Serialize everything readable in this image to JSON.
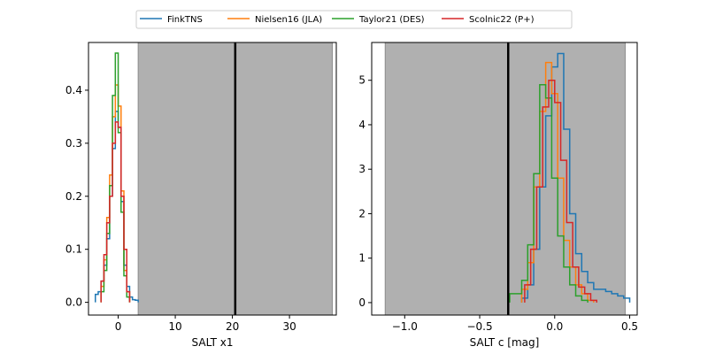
{
  "legend": {
    "placement": "top-center",
    "entries": [
      {
        "name": "FinkTNS",
        "color": "#1f77b4"
      },
      {
        "name": "Nielsen16 (JLA)",
        "color": "#ff7f0e"
      },
      {
        "name": "Taylor21 (DES)",
        "color": "#2ca02c"
      },
      {
        "name": "Scolnic22 (P+)",
        "color": "#d62728"
      }
    ]
  },
  "chart_data": [
    {
      "type": "histogram",
      "xlabel": "SALT x1",
      "ylabel": "",
      "xlim": [
        -5.2,
        38.2
      ],
      "ylim": [
        -0.024,
        0.49
      ],
      "xticks": [
        0,
        10,
        20,
        30
      ],
      "yticks": [
        0.0,
        0.1,
        0.2,
        0.3,
        0.4
      ],
      "ytick_labels": [
        "0.0",
        "0.1",
        "0.2",
        "0.3",
        "0.4"
      ],
      "shaded_region": [
        3.5,
        37.5
      ],
      "shade_color": "#b0b0b0",
      "vline": 20.5,
      "series": [
        {
          "name": "FinkTNS",
          "color": "#1f77b4",
          "edges": [
            -4.0,
            -3.5,
            -3.0,
            -2.5,
            -2.0,
            -1.5,
            -1.0,
            -0.5,
            0.0,
            0.5,
            1.0,
            1.5,
            2.0,
            2.5,
            3.0,
            3.5
          ],
          "heights": [
            0.015,
            0.02,
            0.04,
            0.07,
            0.12,
            0.2,
            0.29,
            0.36,
            0.33,
            0.19,
            0.07,
            0.03,
            0.01,
            0.005,
            0.004
          ]
        },
        {
          "name": "Nielsen16 (JLA)",
          "color": "#ff7f0e",
          "edges": [
            -3.0,
            -2.5,
            -2.0,
            -1.5,
            -1.0,
            -0.5,
            0.0,
            0.5,
            1.0,
            1.5,
            2.0
          ],
          "heights": [
            0.03,
            0.08,
            0.16,
            0.24,
            0.35,
            0.41,
            0.37,
            0.21,
            0.06,
            0.02
          ]
        },
        {
          "name": "Taylor21 (DES)",
          "color": "#2ca02c",
          "edges": [
            -3.0,
            -2.5,
            -2.0,
            -1.5,
            -1.0,
            -0.5,
            0.0,
            0.5,
            1.0,
            1.5,
            2.0
          ],
          "heights": [
            0.02,
            0.06,
            0.13,
            0.22,
            0.39,
            0.47,
            0.32,
            0.17,
            0.05,
            0.01
          ]
        },
        {
          "name": "Scolnic22 (P+)",
          "color": "#d62728",
          "edges": [
            -3.0,
            -2.5,
            -2.0,
            -1.5,
            -1.0,
            -0.5,
            0.0,
            0.5,
            1.0,
            1.5,
            2.0
          ],
          "heights": [
            0.04,
            0.09,
            0.15,
            0.2,
            0.3,
            0.34,
            0.33,
            0.2,
            0.1,
            0.02
          ]
        }
      ]
    },
    {
      "type": "histogram",
      "xlabel": "SALT c [mag]",
      "ylabel": "",
      "xlim": [
        -1.22,
        0.55
      ],
      "ylim": [
        -0.28,
        5.85
      ],
      "xticks": [
        -1.0,
        -0.5,
        0.0,
        0.5
      ],
      "xtick_labels": [
        "−1.0",
        "−0.5",
        "0.0",
        "0.5"
      ],
      "yticks": [
        0,
        1,
        2,
        3,
        4,
        5
      ],
      "shaded_region": [
        -1.13,
        0.47
      ],
      "shade_color": "#b0b0b0",
      "vline": -0.31,
      "series": [
        {
          "name": "FinkTNS",
          "color": "#1f77b4",
          "edges": [
            -0.22,
            -0.18,
            -0.14,
            -0.1,
            -0.06,
            -0.02,
            0.02,
            0.06,
            0.1,
            0.14,
            0.18,
            0.22,
            0.26,
            0.3,
            0.34,
            0.38,
            0.42,
            0.46,
            0.5
          ],
          "heights": [
            0.1,
            0.4,
            1.2,
            2.6,
            4.2,
            5.3,
            5.6,
            3.9,
            2.0,
            1.1,
            0.7,
            0.45,
            0.3,
            0.3,
            0.25,
            0.2,
            0.15,
            0.1
          ]
        },
        {
          "name": "Nielsen16 (JLA)",
          "color": "#ff7f0e",
          "edges": [
            -0.22,
            -0.18,
            -0.14,
            -0.1,
            -0.06,
            -0.02,
            0.02,
            0.06,
            0.1,
            0.14,
            0.18,
            0.22,
            0.26
          ],
          "heights": [
            0.3,
            0.9,
            2.6,
            4.3,
            5.4,
            4.7,
            2.8,
            1.4,
            0.8,
            0.4,
            0.2,
            0.05
          ]
        },
        {
          "name": "Taylor21 (DES)",
          "color": "#2ca02c",
          "edges": [
            -0.3,
            -0.26,
            -0.22,
            -0.18,
            -0.14,
            -0.1,
            -0.06,
            -0.02,
            0.02,
            0.06,
            0.1,
            0.14,
            0.18,
            0.22
          ],
          "heights": [
            0.2,
            0.2,
            0.5,
            1.3,
            2.9,
            4.9,
            4.6,
            2.8,
            1.5,
            0.8,
            0.4,
            0.15,
            0.05
          ]
        },
        {
          "name": "Scolnic22 (P+)",
          "color": "#d62728",
          "edges": [
            -0.2,
            -0.16,
            -0.12,
            -0.08,
            -0.04,
            0.0,
            0.04,
            0.08,
            0.12,
            0.16,
            0.2,
            0.24,
            0.28
          ],
          "heights": [
            0.4,
            1.2,
            2.6,
            4.4,
            5.0,
            4.5,
            3.2,
            1.8,
            0.8,
            0.35,
            0.2,
            0.05
          ]
        }
      ]
    }
  ]
}
